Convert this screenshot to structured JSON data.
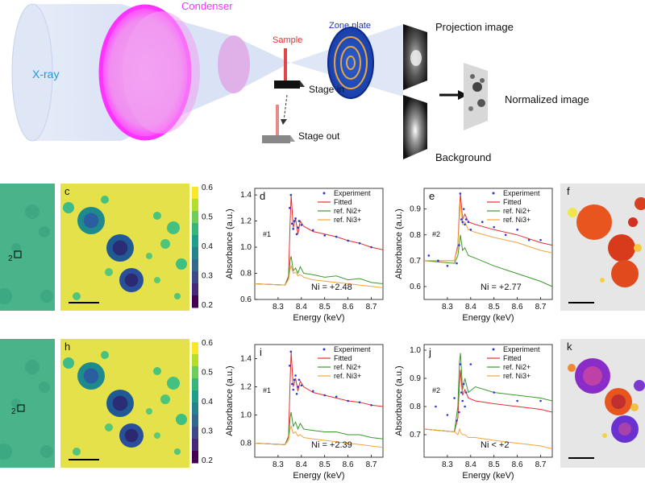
{
  "schematic": {
    "xray": "X-ray",
    "condenser": "Condenser",
    "sample": "Sample",
    "zone_plate": "Zone plate",
    "stage_in": "Stage  in",
    "stage_out": "Stage  out",
    "projection": "Projection image",
    "normalized": "Normalized image",
    "background": "Background",
    "colors": {
      "xray": "#1e9bd7",
      "condenser": "#ff33ff",
      "sample": "#e53030",
      "zone_plate": "#1a30c8"
    }
  },
  "panels": {
    "c": "c",
    "h": "h",
    "f": "f",
    "k": "k",
    "marker2_top": "2",
    "marker2_bottom": "2"
  },
  "colorbar": {
    "ticks": [
      "0.6",
      "0.5",
      "0.4",
      "0.3",
      "0.2"
    ]
  },
  "chart_data": [
    {
      "panel": "d",
      "type": "line",
      "xlabel": "Energy (keV)",
      "ylabel": "Absorbance (a.u.)",
      "xlim": [
        8.2,
        8.75
      ],
      "ylim": [
        0.6,
        1.45
      ],
      "xticks": [
        "8.3",
        "8.4",
        "8.5",
        "8.6",
        "8.7"
      ],
      "xtick_values": [
        8.3,
        8.4,
        8.5,
        8.6,
        8.7
      ],
      "yticks": [
        "0.6",
        "0.8",
        "1.0",
        "1.2",
        "1.4"
      ],
      "ytick_values": [
        0.6,
        0.8,
        1.0,
        1.2,
        1.4
      ],
      "legend": [
        "Experiment",
        "Fitted",
        "ref. Ni2+",
        "ref. Ni3+"
      ],
      "pixel_label": "#1",
      "annotation": "Ni = +2.48",
      "series": [
        {
          "name": "Fitted",
          "x": [
            8.2,
            8.33,
            8.345,
            8.352,
            8.356,
            8.365,
            8.375,
            8.385,
            8.395,
            8.41,
            8.45,
            8.5,
            8.55,
            8.6,
            8.65,
            8.7,
            8.75
          ],
          "y": [
            0.72,
            0.71,
            0.78,
            1.2,
            1.4,
            1.15,
            1.22,
            1.1,
            1.2,
            1.16,
            1.12,
            1.1,
            1.08,
            1.05,
            1.03,
            1.0,
            0.98
          ]
        },
        {
          "name": "ref. Ni2+",
          "x": [
            8.2,
            8.33,
            8.345,
            8.352,
            8.356,
            8.365,
            8.375,
            8.385,
            8.395,
            8.41,
            8.45,
            8.5,
            8.55,
            8.6,
            8.65,
            8.7,
            8.75
          ],
          "y": [
            0.72,
            0.71,
            0.77,
            0.9,
            0.93,
            0.82,
            0.84,
            0.8,
            0.85,
            0.8,
            0.79,
            0.77,
            0.78,
            0.75,
            0.76,
            0.73,
            0.72
          ]
        },
        {
          "name": "ref. Ni3+",
          "x": [
            8.2,
            8.33,
            8.345,
            8.352,
            8.356,
            8.365,
            8.375,
            8.385,
            8.395,
            8.41,
            8.45,
            8.5,
            8.55,
            8.6,
            8.65,
            8.7,
            8.75
          ],
          "y": [
            0.72,
            0.71,
            0.75,
            0.83,
            0.86,
            0.8,
            0.81,
            0.78,
            0.79,
            0.77,
            0.75,
            0.74,
            0.73,
            0.72,
            0.71,
            0.7,
            0.69
          ]
        },
        {
          "name": "Experiment",
          "x": [
            8.35,
            8.355,
            8.36,
            8.365,
            8.37,
            8.375,
            8.38,
            8.385,
            8.39,
            8.4,
            8.45,
            8.5,
            8.55,
            8.6,
            8.65,
            8.7
          ],
          "y": [
            1.3,
            1.4,
            1.18,
            1.14,
            1.2,
            1.22,
            1.1,
            1.15,
            1.2,
            1.17,
            1.13,
            1.09,
            1.08,
            1.05,
            1.03,
            1.0
          ]
        }
      ]
    },
    {
      "panel": "e",
      "type": "line",
      "xlabel": "Energy (keV)",
      "ylabel": "Absorbance (a.u.)",
      "xlim": [
        8.2,
        8.75
      ],
      "ylim": [
        0.55,
        0.98
      ],
      "xticks": [
        "8.3",
        "8.4",
        "8.5",
        "8.6",
        "8.7"
      ],
      "xtick_values": [
        8.3,
        8.4,
        8.5,
        8.6,
        8.7
      ],
      "yticks": [
        "0.6",
        "0.7",
        "0.8",
        "0.9"
      ],
      "ytick_values": [
        0.6,
        0.7,
        0.8,
        0.9
      ],
      "legend": [
        "Experiment",
        "Fitted",
        "ref. Ni2+",
        "ref. Ni3+"
      ],
      "pixel_label": "#2",
      "annotation": "Ni = +2.77",
      "series": [
        {
          "name": "Fitted",
          "x": [
            8.2,
            8.33,
            8.345,
            8.352,
            8.356,
            8.365,
            8.375,
            8.39,
            8.42,
            8.5,
            8.6,
            8.7,
            8.75
          ],
          "y": [
            0.7,
            0.7,
            0.76,
            0.9,
            0.96,
            0.86,
            0.88,
            0.85,
            0.84,
            0.82,
            0.8,
            0.77,
            0.76
          ]
        },
        {
          "name": "ref. Ni2+",
          "x": [
            8.2,
            8.33,
            8.345,
            8.352,
            8.356,
            8.365,
            8.375,
            8.39,
            8.42,
            8.5,
            8.6,
            8.7,
            8.75
          ],
          "y": [
            0.7,
            0.69,
            0.72,
            0.77,
            0.8,
            0.74,
            0.75,
            0.72,
            0.71,
            0.68,
            0.65,
            0.62,
            0.6
          ]
        },
        {
          "name": "ref. Ni3+",
          "x": [
            8.2,
            8.33,
            8.345,
            8.352,
            8.356,
            8.365,
            8.375,
            8.39,
            8.42,
            8.5,
            8.6,
            8.7,
            8.75
          ],
          "y": [
            0.7,
            0.7,
            0.75,
            0.87,
            0.93,
            0.84,
            0.85,
            0.82,
            0.81,
            0.79,
            0.77,
            0.74,
            0.73
          ]
        },
        {
          "name": "Experiment",
          "x": [
            8.22,
            8.26,
            8.3,
            8.34,
            8.35,
            8.355,
            8.36,
            8.365,
            8.37,
            8.375,
            8.38,
            8.39,
            8.4,
            8.45,
            8.5,
            8.55,
            8.6,
            8.65,
            8.7
          ],
          "y": [
            0.72,
            0.7,
            0.68,
            0.69,
            0.76,
            0.96,
            0.86,
            0.85,
            0.9,
            0.84,
            0.86,
            0.85,
            0.82,
            0.85,
            0.83,
            0.8,
            0.82,
            0.78,
            0.78
          ]
        }
      ]
    },
    {
      "panel": "i",
      "type": "line",
      "xlabel": "Energy (keV)",
      "ylabel": "Absorbance (a.u.)",
      "xlim": [
        8.2,
        8.75
      ],
      "ylim": [
        0.7,
        1.5
      ],
      "xticks": [
        "8.3",
        "8.4",
        "8.5",
        "8.6",
        "8.7"
      ],
      "xtick_values": [
        8.3,
        8.4,
        8.5,
        8.6,
        8.7
      ],
      "yticks": [
        "0.8",
        "1.0",
        "1.2",
        "1.4"
      ],
      "ytick_values": [
        0.8,
        1.0,
        1.2,
        1.4
      ],
      "legend": [
        "Experiment",
        "Fitted",
        "ref. Ni2+",
        "ref. Ni3+"
      ],
      "pixel_label": "#1",
      "annotation": "Ni = +2.39",
      "series": [
        {
          "name": "Fitted",
          "x": [
            8.2,
            8.33,
            8.345,
            8.352,
            8.356,
            8.365,
            8.375,
            8.385,
            8.395,
            8.41,
            8.45,
            8.5,
            8.55,
            8.6,
            8.65,
            8.7,
            8.75
          ],
          "y": [
            0.8,
            0.79,
            0.85,
            1.25,
            1.45,
            1.2,
            1.26,
            1.17,
            1.24,
            1.2,
            1.16,
            1.14,
            1.12,
            1.1,
            1.09,
            1.07,
            1.06
          ]
        },
        {
          "name": "ref. Ni2+",
          "x": [
            8.2,
            8.33,
            8.345,
            8.352,
            8.356,
            8.365,
            8.375,
            8.385,
            8.395,
            8.41,
            8.45,
            8.5,
            8.55,
            8.6,
            8.65,
            8.7,
            8.75
          ],
          "y": [
            0.8,
            0.79,
            0.84,
            0.98,
            1.02,
            0.92,
            0.95,
            0.9,
            0.94,
            0.9,
            0.89,
            0.88,
            0.88,
            0.86,
            0.86,
            0.84,
            0.83
          ]
        },
        {
          "name": "ref. Ni3+",
          "x": [
            8.2,
            8.33,
            8.345,
            8.352,
            8.356,
            8.365,
            8.375,
            8.385,
            8.395,
            8.41,
            8.45,
            8.5,
            8.55,
            8.6,
            8.65,
            8.7,
            8.75
          ],
          "y": [
            0.8,
            0.79,
            0.82,
            0.9,
            0.92,
            0.87,
            0.88,
            0.85,
            0.86,
            0.84,
            0.83,
            0.82,
            0.81,
            0.8,
            0.79,
            0.78,
            0.77
          ]
        },
        {
          "name": "Experiment",
          "x": [
            8.35,
            8.355,
            8.36,
            8.365,
            8.37,
            8.375,
            8.38,
            8.385,
            8.39,
            8.4,
            8.45,
            8.5,
            8.55,
            8.6,
            8.65,
            8.7
          ],
          "y": [
            1.35,
            1.45,
            1.22,
            1.18,
            1.25,
            1.28,
            1.15,
            1.2,
            1.25,
            1.21,
            1.17,
            1.14,
            1.13,
            1.1,
            1.09,
            1.07
          ]
        }
      ]
    },
    {
      "panel": "j",
      "type": "line",
      "xlabel": "Energy (keV)",
      "ylabel": "Absorbance (a.u.)",
      "xlim": [
        8.2,
        8.75
      ],
      "ylim": [
        0.62,
        1.02
      ],
      "xticks": [
        "8.3",
        "8.4",
        "8.5",
        "8.6",
        "8.7"
      ],
      "xtick_values": [
        8.3,
        8.4,
        8.5,
        8.6,
        8.7
      ],
      "yticks": [
        "0.7",
        "0.8",
        "0.9",
        "1.0"
      ],
      "ytick_values": [
        0.7,
        0.8,
        0.9,
        1.0
      ],
      "legend": [
        "Experiment",
        "Fitted",
        "ref. Ni2+",
        "ref. Ni3+"
      ],
      "pixel_label": "#2",
      "annotation": "Ni < +2",
      "series": [
        {
          "name": "Fitted",
          "x": [
            8.2,
            8.33,
            8.345,
            8.352,
            8.356,
            8.365,
            8.375,
            8.39,
            8.42,
            8.5,
            8.6,
            8.7,
            8.75
          ],
          "y": [
            0.72,
            0.71,
            0.76,
            0.88,
            0.93,
            0.84,
            0.86,
            0.83,
            0.82,
            0.81,
            0.8,
            0.79,
            0.78
          ]
        },
        {
          "name": "ref. Ni2+",
          "x": [
            8.2,
            8.33,
            8.345,
            8.352,
            8.356,
            8.365,
            8.375,
            8.39,
            8.42,
            8.5,
            8.6,
            8.7,
            8.75
          ],
          "y": [
            0.72,
            0.71,
            0.8,
            0.96,
            0.99,
            0.86,
            0.9,
            0.85,
            0.87,
            0.85,
            0.84,
            0.83,
            0.82
          ]
        },
        {
          "name": "ref. Ni3+",
          "x": [
            8.2,
            8.33,
            8.345,
            8.352,
            8.356,
            8.365,
            8.375,
            8.39,
            8.42,
            8.5,
            8.6,
            8.7,
            8.75
          ],
          "y": [
            0.72,
            0.71,
            0.7,
            0.72,
            0.71,
            0.7,
            0.7,
            0.69,
            0.69,
            0.68,
            0.67,
            0.66,
            0.65
          ]
        },
        {
          "name": "Experiment",
          "x": [
            8.25,
            8.3,
            8.33,
            8.34,
            8.35,
            8.355,
            8.36,
            8.365,
            8.37,
            8.375,
            8.38,
            8.4,
            8.5,
            8.6,
            8.7
          ],
          "y": [
            0.8,
            0.77,
            0.83,
            0.75,
            0.78,
            0.95,
            0.85,
            0.82,
            0.88,
            0.8,
            0.85,
            0.95,
            0.85,
            0.82,
            0.82
          ]
        }
      ]
    }
  ]
}
